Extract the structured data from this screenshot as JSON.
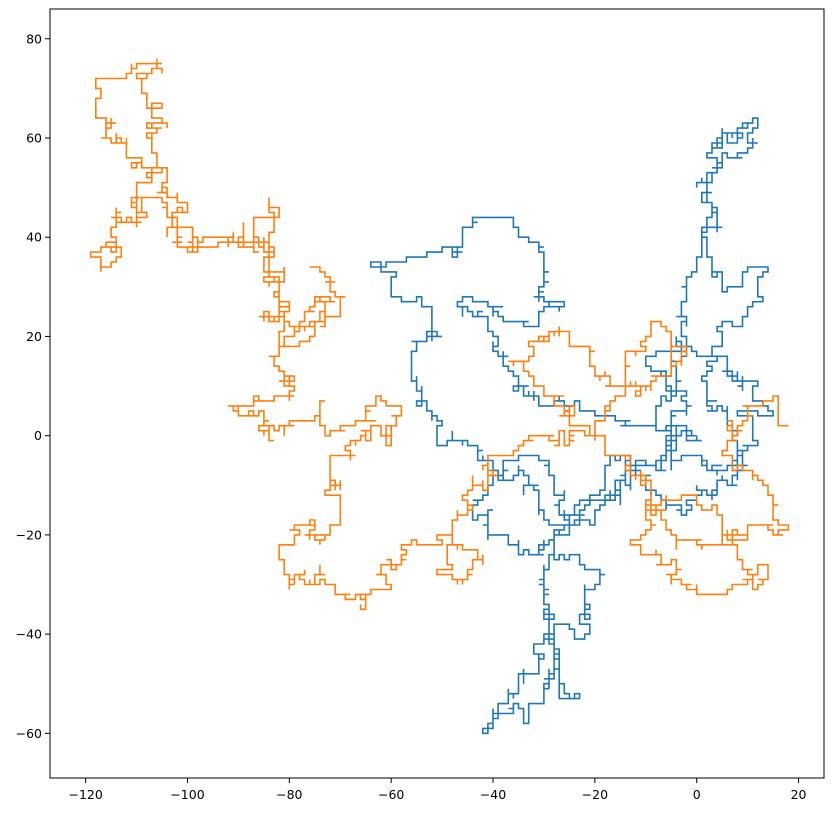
{
  "chart_data": {
    "type": "line",
    "title": "",
    "xlabel": "",
    "ylabel": "",
    "xlim": [
      -127,
      25
    ],
    "ylim": [
      -69,
      86
    ],
    "xticks": [
      -120,
      -100,
      -80,
      -60,
      -40,
      -20,
      0,
      20
    ],
    "yticks": [
      -60,
      -40,
      -20,
      0,
      20,
      40,
      60,
      80
    ],
    "xtick_labels": [
      "−120",
      "−100",
      "−80",
      "−60",
      "−40",
      "−20",
      "0",
      "20"
    ],
    "ytick_labels": [
      "−60",
      "−40",
      "−20",
      "0",
      "20",
      "40",
      "60",
      "80"
    ],
    "grid": false,
    "legend": "none",
    "series": [
      {
        "color": "#1f77b4",
        "seed": 7,
        "waypoints": [
          [
            0,
            0
          ],
          [
            -8,
            -6
          ],
          [
            -16,
            -12
          ],
          [
            -24,
            -18
          ],
          [
            -30,
            -26
          ],
          [
            -28,
            -36
          ],
          [
            -32,
            -44
          ],
          [
            -36,
            -52
          ],
          [
            -42,
            -60
          ],
          [
            -38,
            -56
          ],
          [
            -33,
            -58
          ],
          [
            -30,
            -50
          ],
          [
            -28,
            -44
          ],
          [
            -25,
            -52
          ],
          [
            -28,
            -38
          ],
          [
            -22,
            -30
          ],
          [
            -18,
            -28
          ],
          [
            -24,
            -24
          ],
          [
            -30,
            -16
          ],
          [
            -36,
            -8
          ],
          [
            -44,
            -2
          ],
          [
            -52,
            4
          ],
          [
            -56,
            12
          ],
          [
            -52,
            20
          ],
          [
            -58,
            28
          ],
          [
            -64,
            34
          ],
          [
            -56,
            36
          ],
          [
            -48,
            36
          ],
          [
            -42,
            44
          ],
          [
            -36,
            44
          ],
          [
            -30,
            36
          ],
          [
            -26,
            26
          ],
          [
            -34,
            22
          ],
          [
            -40,
            26
          ],
          [
            -46,
            28
          ],
          [
            -40,
            18
          ],
          [
            -34,
            8
          ],
          [
            -26,
            6
          ],
          [
            -20,
            4
          ],
          [
            -12,
            2
          ],
          [
            -6,
            8
          ],
          [
            -2,
            16
          ],
          [
            -4,
            24
          ],
          [
            -2,
            30
          ],
          [
            0,
            36
          ],
          [
            2,
            42
          ],
          [
            0,
            50
          ],
          [
            2,
            56
          ],
          [
            6,
            60
          ],
          [
            12,
            64
          ],
          [
            8,
            56
          ],
          [
            2,
            52
          ],
          [
            4,
            44
          ],
          [
            2,
            36
          ],
          [
            6,
            30
          ],
          [
            12,
            34
          ],
          [
            10,
            26
          ],
          [
            4,
            18
          ],
          [
            2,
            10
          ],
          [
            6,
            2
          ],
          [
            10,
            -6
          ],
          [
            4,
            -12
          ],
          [
            -2,
            -16
          ],
          [
            -8,
            -12
          ],
          [
            -14,
            -4
          ],
          [
            -18,
            -10
          ],
          [
            -22,
            -16
          ],
          [
            -28,
            -20
          ],
          [
            -34,
            -24
          ],
          [
            -40,
            -20
          ],
          [
            -44,
            -14
          ],
          [
            -40,
            -8
          ],
          [
            -34,
            -4
          ],
          [
            -28,
            -10
          ],
          [
            -24,
            -18
          ],
          [
            -18,
            -14
          ],
          [
            -12,
            -8
          ],
          [
            -6,
            -2
          ],
          [
            -2,
            4
          ],
          [
            -6,
            10
          ],
          [
            -10,
            16
          ],
          [
            -4,
            20
          ],
          [
            2,
            16
          ],
          [
            8,
            10
          ],
          [
            14,
            6
          ],
          [
            10,
            -2
          ],
          [
            4,
            -8
          ],
          [
            -2,
            -4
          ],
          [
            -8,
            2
          ],
          [
            -4,
            0
          ],
          [
            0,
            0
          ]
        ]
      },
      {
        "color": "#ff7f0e",
        "seed": 13,
        "waypoints": [
          [
            18,
            2
          ],
          [
            16,
            8
          ],
          [
            10,
            4
          ],
          [
            6,
            -2
          ],
          [
            12,
            -8
          ],
          [
            16,
            -14
          ],
          [
            10,
            -20
          ],
          [
            4,
            -16
          ],
          [
            -2,
            -12
          ],
          [
            -8,
            -18
          ],
          [
            -12,
            -22
          ],
          [
            -6,
            -26
          ],
          [
            0,
            -30
          ],
          [
            6,
            -32
          ],
          [
            12,
            -30
          ],
          [
            14,
            -26
          ],
          [
            8,
            -24
          ],
          [
            2,
            -22
          ],
          [
            -4,
            -20
          ],
          [
            -10,
            -14
          ],
          [
            -14,
            -6
          ],
          [
            -18,
            0
          ],
          [
            -24,
            4
          ],
          [
            -30,
            8
          ],
          [
            -34,
            14
          ],
          [
            -30,
            20
          ],
          [
            -24,
            18
          ],
          [
            -18,
            12
          ],
          [
            -12,
            8
          ],
          [
            -6,
            12
          ],
          [
            -2,
            18
          ],
          [
            -6,
            22
          ],
          [
            -12,
            16
          ],
          [
            -16,
            8
          ],
          [
            -20,
            2
          ],
          [
            -26,
            -2
          ],
          [
            -32,
            0
          ],
          [
            -38,
            -4
          ],
          [
            -42,
            -10
          ],
          [
            -46,
            -16
          ],
          [
            -48,
            -22
          ],
          [
            -50,
            -28
          ],
          [
            -46,
            -30
          ],
          [
            -42,
            -26
          ],
          [
            -48,
            -20
          ],
          [
            -56,
            -22
          ],
          [
            -62,
            -26
          ],
          [
            -66,
            -34
          ],
          [
            -70,
            -32
          ],
          [
            -74,
            -26
          ],
          [
            -80,
            -30
          ],
          [
            -82,
            -24
          ],
          [
            -78,
            -18
          ],
          [
            -72,
            -20
          ],
          [
            -70,
            -14
          ],
          [
            -72,
            -8
          ],
          [
            -68,
            -4
          ],
          [
            -64,
            2
          ],
          [
            -60,
            -2
          ],
          [
            -58,
            4
          ],
          [
            -62,
            8
          ],
          [
            -68,
            2
          ],
          [
            -74,
            6
          ],
          [
            -80,
            2
          ],
          [
            -86,
            4
          ],
          [
            -92,
            6
          ],
          [
            -86,
            8
          ],
          [
            -80,
            10
          ],
          [
            -84,
            16
          ],
          [
            -80,
            20
          ],
          [
            -76,
            26
          ],
          [
            -72,
            28
          ],
          [
            -76,
            22
          ],
          [
            -82,
            28
          ],
          [
            -84,
            34
          ],
          [
            -86,
            40
          ],
          [
            -90,
            38
          ],
          [
            -96,
            40
          ],
          [
            -100,
            38
          ],
          [
            -104,
            40
          ],
          [
            -102,
            44
          ],
          [
            -106,
            48
          ],
          [
            -110,
            44
          ],
          [
            -114,
            38
          ],
          [
            -116,
            34
          ],
          [
            -114,
            42
          ],
          [
            -110,
            50
          ],
          [
            -106,
            56
          ],
          [
            -108,
            62
          ],
          [
            -104,
            62
          ],
          [
            -108,
            68
          ],
          [
            -106,
            76
          ],
          [
            -110,
            74
          ],
          [
            -114,
            72
          ],
          [
            -118,
            72
          ],
          [
            -116,
            64
          ],
          [
            -112,
            58
          ],
          [
            -108,
            54
          ],
          [
            -104,
            48
          ],
          [
            -102,
            42
          ],
          [
            -98,
            38
          ],
          [
            -90,
            38
          ],
          [
            -86,
            44
          ],
          [
            -82,
            44
          ],
          [
            -84,
            38
          ],
          [
            -82,
            30
          ],
          [
            -86,
            24
          ],
          [
            -80,
            18
          ],
          [
            -74,
            22
          ],
          [
            -70,
            26
          ],
          [
            -72,
            30
          ],
          [
            -76,
            34
          ]
        ]
      }
    ]
  }
}
